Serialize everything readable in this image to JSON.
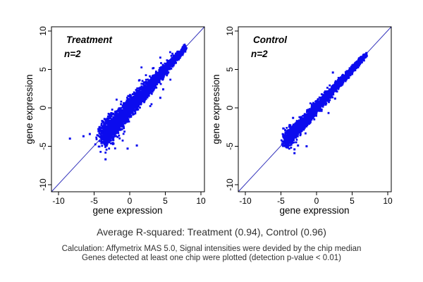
{
  "figure": {
    "background": "#ffffff",
    "axis_color": "#000000",
    "panel_title_color": "#b9b9b9",
    "caption_color": "#303030"
  },
  "caption": {
    "line1": "Average R-squared: Treatment (0.94), Control (0.96)",
    "line2": "Calculation: Affymetrix MAS 5.0, Signal intensities were devided by the chip median",
    "line3": "Genes detected at least one chip were plotted (detection p-value < 0.01)"
  },
  "chart_data": [
    {
      "type": "scatter",
      "title": "Treatment",
      "annotation": "n=2",
      "xlabel": "gene expression",
      "ylabel": "gene expression",
      "xlim": [
        -10,
        10
      ],
      "ylim": [
        -10,
        10
      ],
      "xticks": [
        -10,
        -5,
        0,
        5,
        10
      ],
      "yticks": [
        -10,
        -5,
        0,
        5,
        10
      ],
      "grid": false,
      "legend": "none",
      "reference_line": "identity y=x, corner to corner",
      "r_squared": 0.94,
      "marker_color": "#0b0bee",
      "line_color": "#3333bb",
      "cloud": {
        "seed": 42,
        "n": 2800,
        "along_min": -3.6,
        "along_max": 7.8,
        "density_pow": 1.4,
        "spread_at_min": 1.55,
        "spread_at_max": 0.33,
        "x_noise_ratio": 0.55,
        "tail_frac": 0.03,
        "tail_mult": 2.4
      },
      "outliers": [
        [
          -8.4,
          -4.0
        ],
        [
          -6.5,
          -3.7
        ],
        [
          -5.6,
          -3.4
        ],
        [
          -3.9,
          -3.2
        ],
        [
          -3.4,
          -6.7
        ],
        [
          -2.3,
          -4.2
        ],
        [
          -0.3,
          -5.3
        ],
        [
          1.0,
          -4.9
        ],
        [
          4.7,
          2.4
        ],
        [
          4.3,
          1.3
        ]
      ]
    },
    {
      "type": "scatter",
      "title": "Control",
      "annotation": "n=2",
      "xlabel": "gene expression",
      "ylabel": "gene expression",
      "xlim": [
        -10,
        10
      ],
      "ylim": [
        -10,
        10
      ],
      "xticks": [
        -10,
        -5,
        0,
        5,
        10
      ],
      "yticks": [
        -10,
        -5,
        0,
        5,
        10
      ],
      "grid": false,
      "legend": "none",
      "reference_line": "identity y=x, corner to corner",
      "r_squared": 0.96,
      "marker_color": "#0b0bee",
      "line_color": "#3333bb",
      "cloud": {
        "seed": 7,
        "n": 2400,
        "along_min": -4.3,
        "along_max": 7.0,
        "density_pow": 1.3,
        "spread_at_min": 1.0,
        "spread_at_max": 0.27,
        "x_noise_ratio": 0.55,
        "tail_frac": 0.025,
        "tail_mult": 2.2
      },
      "outliers": [
        [
          -3.1,
          -5.4
        ],
        [
          -3.1,
          -5.9
        ],
        [
          -2.6,
          -4.9
        ],
        [
          -1.4,
          -5.0
        ],
        [
          -4.4,
          -2.9
        ],
        [
          2.6,
          1.2
        ],
        [
          2.3,
          4.6
        ],
        [
          -3.3,
          -1.3
        ]
      ]
    }
  ]
}
